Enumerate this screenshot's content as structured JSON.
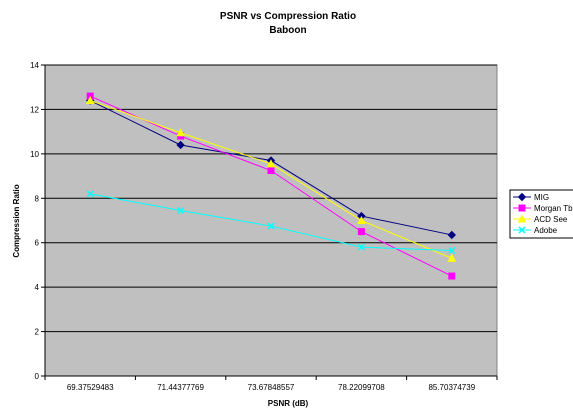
{
  "chart_data": {
    "type": "line",
    "title": "PSNR vs Compression Ratio",
    "subtitle": "Baboon",
    "xlabel": "PSNR (dB)",
    "ylabel": "Compression Ratio",
    "categories": [
      "69.37529483",
      "71.44377769",
      "73.67848557",
      "78.22099708",
      "85.70374739"
    ],
    "ylim": [
      0,
      14
    ],
    "yticks": [
      0,
      2,
      4,
      6,
      8,
      10,
      12,
      14
    ],
    "grid": true,
    "legend_position": "right",
    "plot_background": "#c0c0c0",
    "series": [
      {
        "name": "MIG",
        "color": "#000080",
        "marker": "diamond",
        "values": [
          12.4,
          10.4,
          9.7,
          7.2,
          6.35
        ]
      },
      {
        "name": "Morgan Tbl",
        "color": "#ff00ff",
        "marker": "square",
        "values": [
          12.6,
          10.8,
          9.25,
          6.5,
          4.5
        ]
      },
      {
        "name": "ACD See",
        "color": "#ffff00",
        "marker": "triangle",
        "values": [
          12.4,
          10.95,
          9.55,
          7.0,
          5.3
        ]
      },
      {
        "name": "Adobe",
        "color": "#00ffff",
        "marker": "x",
        "values": [
          8.2,
          7.45,
          6.75,
          5.8,
          5.65
        ]
      }
    ]
  }
}
